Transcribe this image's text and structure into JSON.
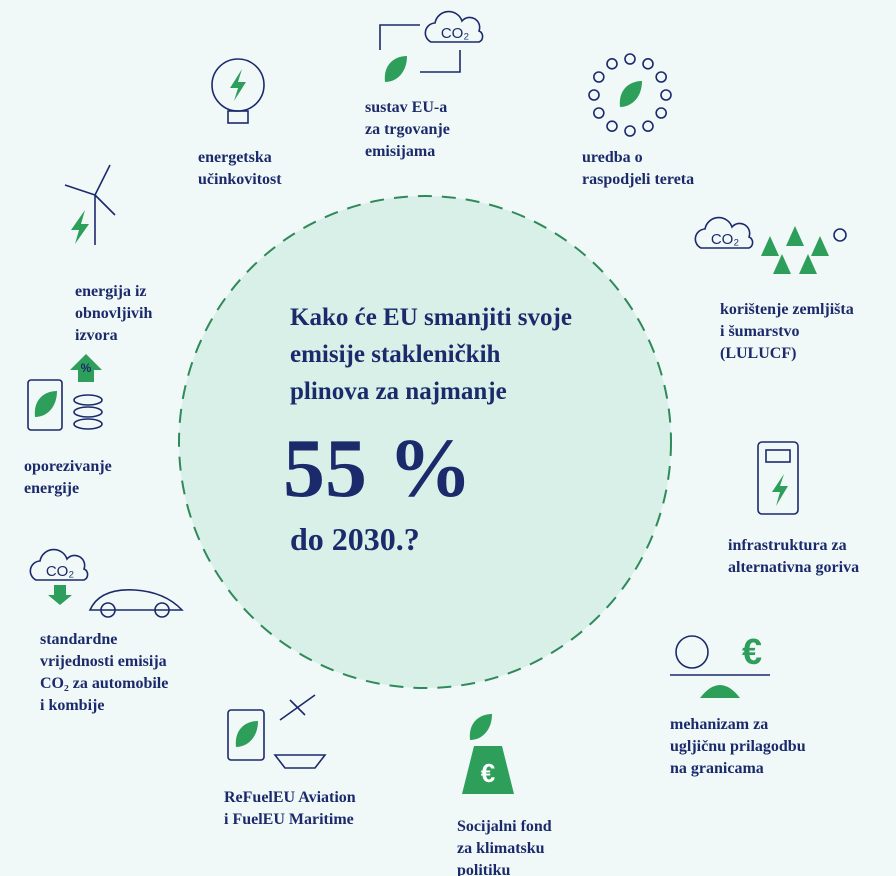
{
  "center": {
    "lines": [
      "Kako će EU smanjiti svoje",
      "emisije stakleničkih",
      "plinova za najmanje"
    ],
    "percent": "55 %",
    "year": "do 2030.?"
  },
  "items": [
    {
      "lines": [
        "energetska",
        "učinkovitost"
      ]
    },
    {
      "lines": [
        "sustav EU-a",
        "za trgovanje",
        "emisijama"
      ],
      "icon_text": "CO₂"
    },
    {
      "lines": [
        "uredba o",
        "raspodjeli tereta"
      ]
    },
    {
      "lines": [
        "korištenje zemljišta",
        "i šumarstvo",
        "(LULUCF)"
      ],
      "icon_text": "CO₂"
    },
    {
      "lines": [
        "infrastruktura za",
        "alternativna goriva"
      ]
    },
    {
      "lines": [
        "mehanizam za",
        "ugljičnu prilagodbu",
        "na granicama"
      ],
      "icon_text": "€"
    },
    {
      "lines": [
        "Socijalni fond",
        "za klimatsku",
        "politiku"
      ],
      "icon_text": "€"
    },
    {
      "lines": [
        "ReFuelEU Aviation",
        "i FuelEU Maritime"
      ]
    },
    {
      "lines": [
        "standardne",
        "vrijednosti emisija",
        "CO₂ za automobile",
        "i kombije"
      ],
      "icon_text": "CO₂"
    },
    {
      "lines": [
        "oporezivanje",
        "energije"
      ],
      "icon_text": "%"
    },
    {
      "lines": [
        "energija iz",
        "obnovljivih",
        "izvora"
      ]
    }
  ]
}
